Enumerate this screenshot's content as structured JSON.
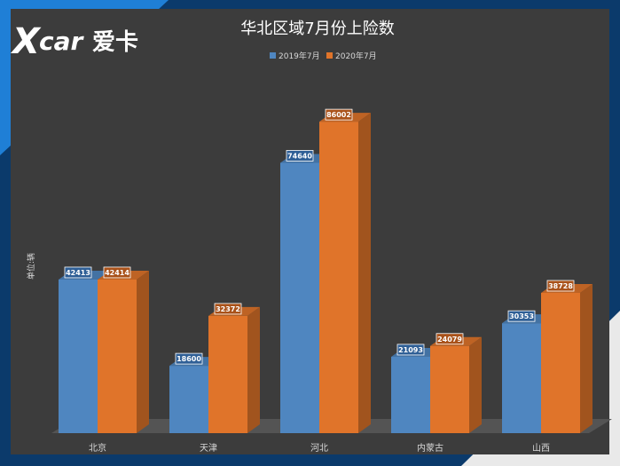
{
  "logo": {
    "text": "XCAR爱卡"
  },
  "chart_data": {
    "type": "bar",
    "title": "华北区域7月份上险数",
    "ylabel": "单位:辆",
    "xlabel": "",
    "categories": [
      "北京",
      "天津",
      "河北",
      "内蒙古",
      "山西"
    ],
    "series": [
      {
        "name": "2019年7月",
        "values": [
          42413,
          18600,
          74640,
          21093,
          30353
        ],
        "color": "#4f86c0",
        "label_color": "#2f5f96"
      },
      {
        "name": "2020年7月",
        "values": [
          42414,
          32372,
          86002,
          24079,
          38728
        ],
        "color": "#e0742a",
        "label_color": "#a9521a"
      }
    ],
    "ylim": [
      0,
      100000
    ],
    "legend": "top-center",
    "grid": false
  },
  "colors": {
    "plot_background": "#3c3c3c",
    "frame_blue": "#0b3a6b",
    "accent_blue": "#1f7fd6",
    "text": "#ffffff",
    "axis_text": "#d8d8d8"
  }
}
